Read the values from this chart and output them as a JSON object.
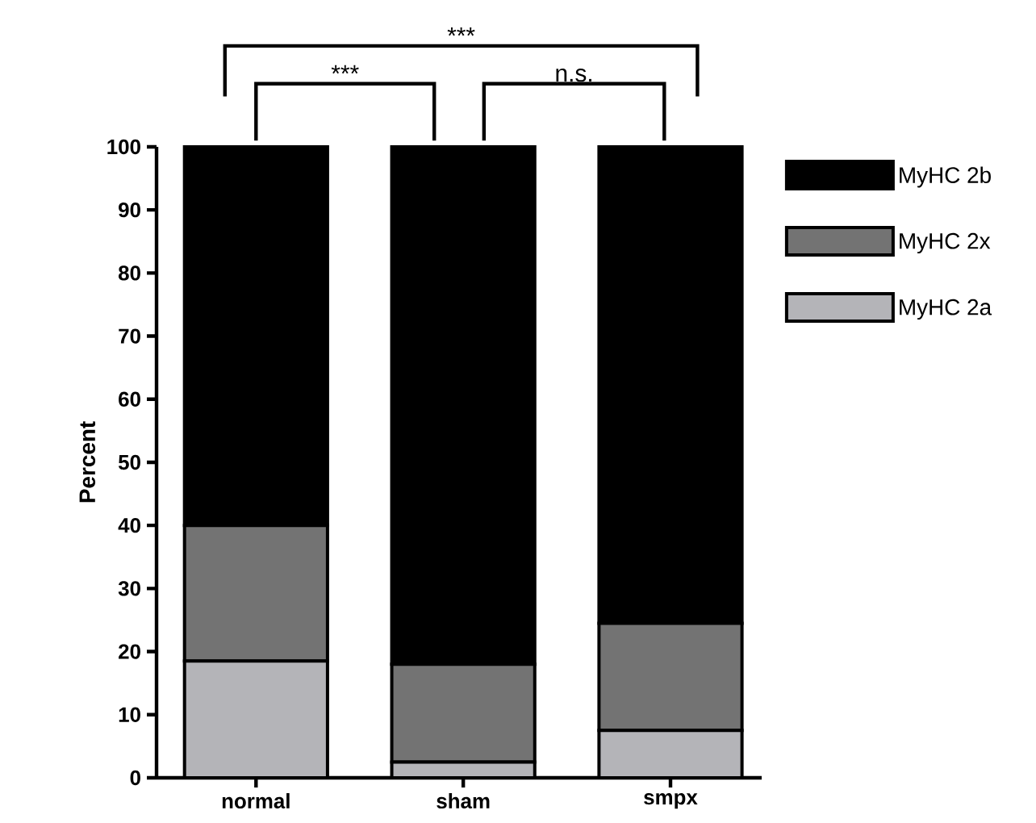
{
  "chart_data": {
    "type": "bar",
    "stacked": true,
    "ylabel": "Percent",
    "categories": [
      "normal",
      "sham",
      "smpx"
    ],
    "series": [
      {
        "name": "MyHC 2a",
        "color": "#b4b4b8",
        "values": [
          18.5,
          2.5,
          7.5
        ]
      },
      {
        "name": "MyHC 2x",
        "color": "#737373",
        "values": [
          21.5,
          15.5,
          17
        ]
      },
      {
        "name": "MyHC 2b",
        "color": "#000000",
        "values": [
          60,
          82,
          75.5
        ]
      }
    ],
    "ylim": [
      0,
      100
    ],
    "yticks": [
      0,
      10,
      20,
      30,
      40,
      50,
      60,
      70,
      80,
      90,
      100
    ],
    "legend": "right",
    "grid": false,
    "annotations": [
      "***",
      "n.s.",
      "***"
    ]
  }
}
